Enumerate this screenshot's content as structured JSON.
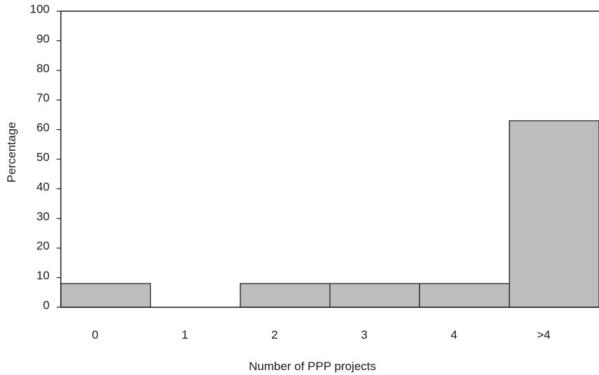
{
  "chart_data": {
    "type": "bar",
    "categories": [
      "0",
      "1",
      "2",
      "3",
      "4",
      ">4"
    ],
    "values": [
      8,
      0,
      8,
      8,
      8,
      63
    ],
    "xlabel": "Number of PPP projects",
    "ylabel": "Percentage",
    "ylim": [
      0,
      100
    ],
    "yticks": [
      0,
      10,
      20,
      30,
      40,
      50,
      60,
      70,
      80,
      90,
      100
    ],
    "grid": false,
    "legend": "none",
    "bar_color": "#bdbdbf",
    "bar_edge_color": "#1a1a1a"
  }
}
